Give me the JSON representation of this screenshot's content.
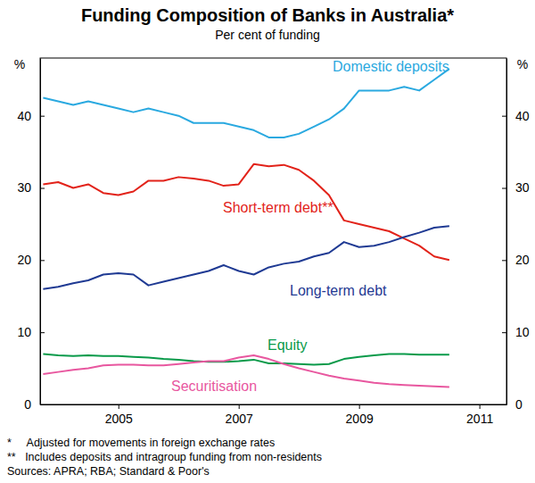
{
  "chart_data": {
    "type": "line",
    "title": "Funding Composition of Banks in Australia*",
    "subtitle": "Per cent of funding",
    "y_label": "%",
    "notes": [
      "*     Adjusted for movements in foreign exchange rates",
      "**   Includes deposits and intragroup funding from non-residents",
      "Sources: APRA; RBA; Standard & Poor's"
    ],
    "x": [
      2003.75,
      2004.0,
      2004.25,
      2004.5,
      2004.75,
      2005.0,
      2005.25,
      2005.5,
      2005.75,
      2006.0,
      2006.25,
      2006.5,
      2006.75,
      2007.0,
      2007.25,
      2007.5,
      2007.75,
      2008.0,
      2008.25,
      2008.5,
      2008.75,
      2009.0,
      2009.25,
      2009.5,
      2009.75,
      2010.0,
      2010.25,
      2010.5
    ],
    "xlim": [
      2003.7,
      2011.45
    ],
    "xticks": [
      2005,
      2007,
      2009,
      2011
    ],
    "ylim": [
      0,
      48
    ],
    "yticks": [
      0,
      10,
      20,
      30,
      40
    ],
    "grid": false,
    "series": [
      {
        "name": "Domestic deposits",
        "color": "#2aa9e0",
        "values": [
          42.5,
          42,
          41.5,
          42,
          41.5,
          41,
          40.5,
          41,
          40.5,
          40,
          39,
          39,
          39,
          38.5,
          38,
          37,
          37,
          37.5,
          38.5,
          39.5,
          41,
          43.5,
          43.5,
          43.5,
          44,
          43.5,
          45,
          46.5
        ]
      },
      {
        "name": "Short-term debt**",
        "color": "#e2231a",
        "values": [
          30.5,
          30.8,
          30,
          30.5,
          29.3,
          29,
          29.5,
          31,
          31,
          31.5,
          31.3,
          31,
          30.3,
          30.5,
          33.3,
          33,
          33.2,
          32.5,
          31,
          29,
          25.5,
          25,
          24.5,
          24,
          23,
          22,
          20.5,
          20
        ]
      },
      {
        "name": "Long-term debt",
        "color": "#1f3a93",
        "values": [
          16,
          16.3,
          16.8,
          17.2,
          18,
          18.2,
          18,
          16.5,
          17,
          17.5,
          18,
          18.5,
          19.3,
          18.5,
          18,
          19,
          19.5,
          19.8,
          20.5,
          21,
          22.5,
          21.8,
          22,
          22.5,
          23.2,
          23.8,
          24.5,
          24.7
        ]
      },
      {
        "name": "Equity",
        "color": "#0a9a4a",
        "values": [
          7,
          6.8,
          6.7,
          6.8,
          6.7,
          6.7,
          6.6,
          6.5,
          6.3,
          6.2,
          6,
          5.9,
          5.9,
          6,
          6.2,
          5.7,
          5.7,
          5.6,
          5.5,
          5.6,
          6.3,
          6.6,
          6.8,
          7,
          7,
          6.9,
          6.9,
          6.9
        ]
      },
      {
        "name": "Securitisation",
        "color": "#e8579f",
        "values": [
          4.2,
          4.5,
          4.8,
          5,
          5.4,
          5.5,
          5.5,
          5.4,
          5.4,
          5.6,
          5.8,
          6,
          6,
          6.5,
          6.8,
          6.3,
          5.6,
          5,
          4.5,
          4,
          3.6,
          3.3,
          3,
          2.8,
          2.7,
          2.6,
          2.5,
          2.4
        ]
      }
    ]
  }
}
